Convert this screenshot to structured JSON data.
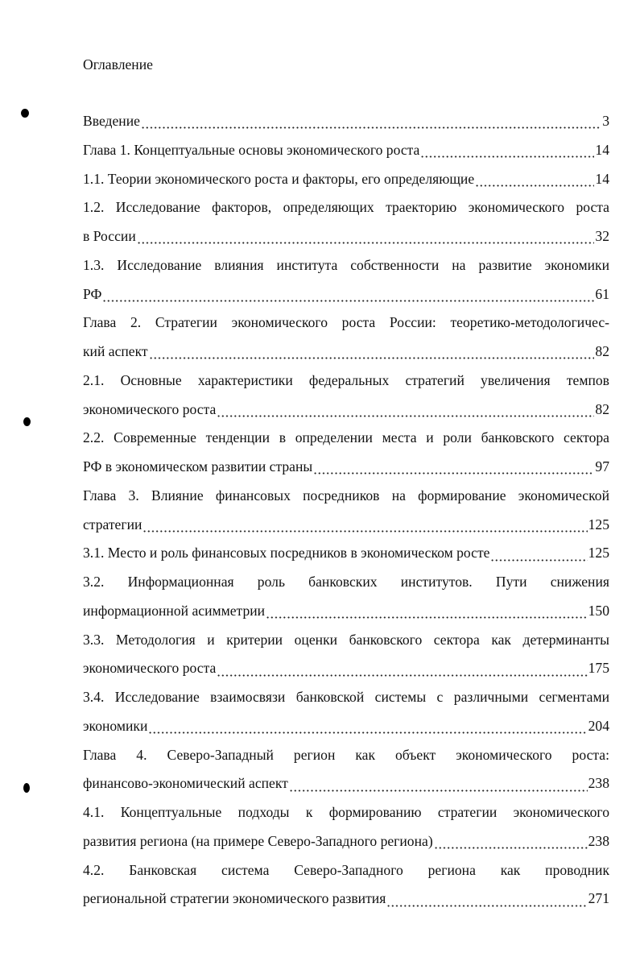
{
  "title": "Оглавление",
  "entries": [
    {
      "lines": [
        "Введение"
      ],
      "page": "3"
    },
    {
      "lines": [
        "Глава 1. Концептуальные основы экономического роста"
      ],
      "page": "14"
    },
    {
      "lines": [
        "1.1. Теории экономического роста и факторы, его определяющие"
      ],
      "page": "14"
    },
    {
      "lines": [
        "1.2. Исследование факторов, определяющих траекторию экономического роста",
        "в России"
      ],
      "page": "32"
    },
    {
      "lines": [
        "1.3. Исследование влияния института собственности на развитие экономики",
        "РФ"
      ],
      "page": "61"
    },
    {
      "lines": [
        "Глава 2. Стратегии экономического роста России: теоретико-методологичес-",
        "кий аспект"
      ],
      "page": "82"
    },
    {
      "lines": [
        "2.1. Основные характеристики федеральных стратегий увеличения темпов",
        "экономического роста"
      ],
      "page": "82"
    },
    {
      "lines": [
        "2.2. Современные тенденции в определении места и роли банковского сектора",
        "РФ в экономическом развитии страны"
      ],
      "page": "97"
    },
    {
      "lines": [
        "Глава 3. Влияние финансовых посредников на формирование экономической",
        "стратегии"
      ],
      "page": "125"
    },
    {
      "lines": [
        "3.1. Место и роль финансовых посредников в экономическом росте"
      ],
      "page": "125"
    },
    {
      "lines": [
        "3.2. Информационная роль банковских институтов. Пути снижения",
        "информационной асимметрии"
      ],
      "page": "150"
    },
    {
      "lines": [
        "3.3. Методология и критерии оценки банковского сектора как детерминанты",
        "экономического роста"
      ],
      "page": "175"
    },
    {
      "lines": [
        "3.4. Исследование взаимосвязи банковской системы с различными сегментами",
        "экономики"
      ],
      "page": "204"
    },
    {
      "lines": [
        "Глава 4. Северо-Западный регион как объект экономического роста:",
        "финансово-экономический аспект"
      ],
      "page": "238"
    },
    {
      "lines": [
        "4.1. Концептуальные подходы к формированию стратегии экономического",
        "развития региона (на примере Северо-Западного региона)"
      ],
      "page": "238"
    },
    {
      "lines": [
        "4.2. Банковская система Северо-Западного региона как проводник",
        "региональной стратегии экономического развития"
      ],
      "page": "271"
    }
  ]
}
